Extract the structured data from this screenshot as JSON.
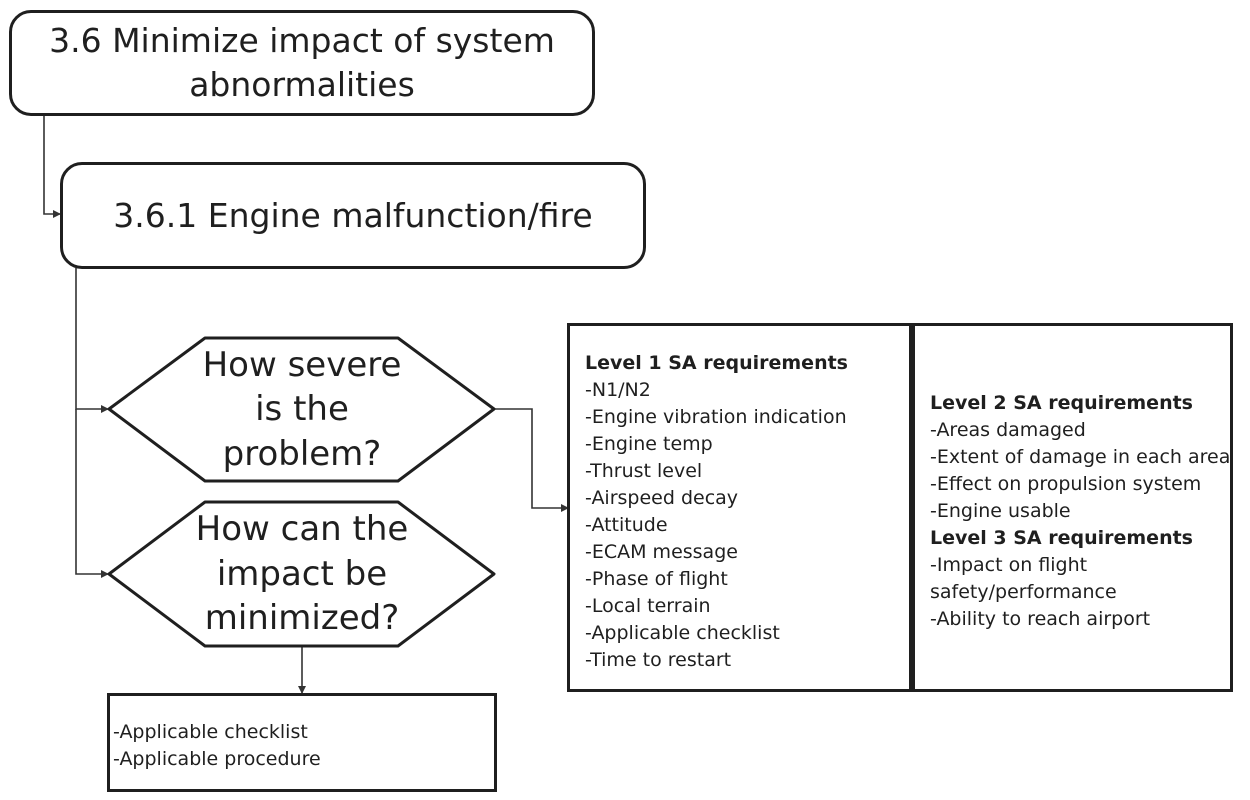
{
  "root": {
    "title": "3.6 Minimize impact of system abnormalities",
    "lines": [
      "3.6 Minimize impact of system",
      "abnormalities"
    ]
  },
  "sub": {
    "title": "3.6.1 Engine malfunction/fire"
  },
  "decision1": {
    "lines": [
      "How severe",
      "is the",
      "problem?"
    ]
  },
  "decision2": {
    "lines": [
      "How can the",
      "impact be",
      "minimized?"
    ]
  },
  "actions": {
    "items": [
      "-Applicable checklist",
      "-Applicable procedure"
    ]
  },
  "level1": {
    "heading": "Level 1 SA requirements",
    "items": [
      "-N1/N2",
      "-Engine vibration indication",
      "-Engine temp",
      "-Thrust level",
      "-Airspeed decay",
      "-Attitude",
      "-ECAM message",
      "-Phase of flight",
      "-Local terrain",
      "-Applicable checklist",
      "-Time to restart"
    ]
  },
  "level2": {
    "heading": "Level 2 SA requirements",
    "items": [
      "-Areas damaged",
      "-Extent of damage in each area",
      "-Effect on propulsion system",
      "-Engine usable"
    ]
  },
  "level3": {
    "heading": "Level 3 SA requirements",
    "items": [
      "-Impact on flight",
      "safety/performance",
      "-Ability to reach airport"
    ]
  },
  "colors": {
    "stroke": "#1f1f1f",
    "text": "#1f1f1f",
    "background": "#ffffff"
  }
}
